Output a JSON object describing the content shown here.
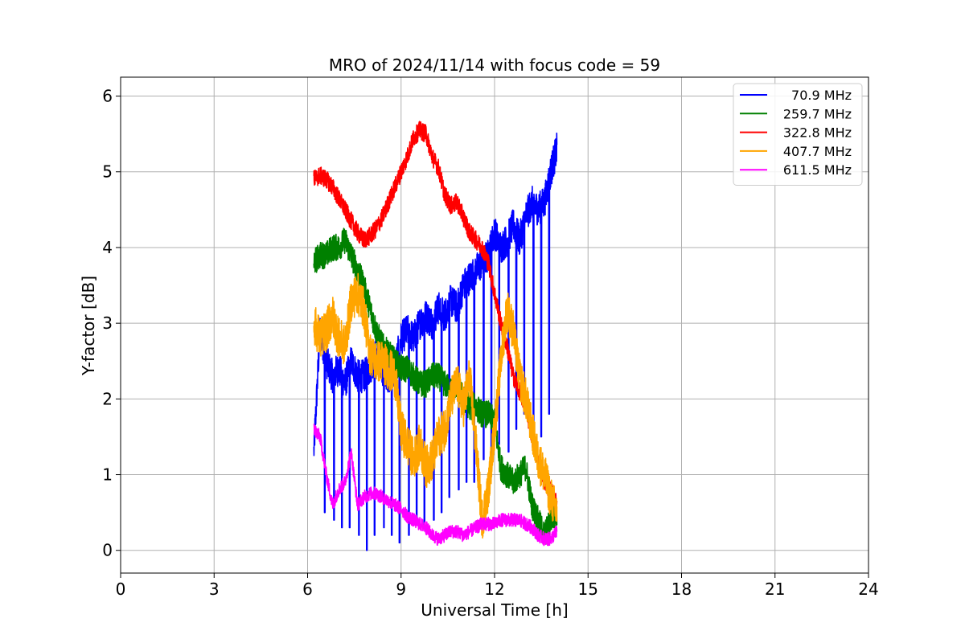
{
  "chart_data": {
    "type": "line",
    "title": "MRO of 2024/11/14 with focus code = 59",
    "xlabel": "Universal Time [h]",
    "ylabel": "Y-factor [dB]",
    "xlim": [
      0,
      24
    ],
    "ylim": [
      -0.3,
      6.25
    ],
    "xticks": [
      0,
      3,
      6,
      9,
      12,
      15,
      18,
      21,
      24
    ],
    "yticks": [
      0,
      1,
      2,
      3,
      4,
      5,
      6
    ],
    "grid": true,
    "legend_position": "top-right",
    "series": [
      {
        "name": "70.9 MHz",
        "color": "#0000ff",
        "x": [
          6.2,
          6.4,
          6.6,
          6.8,
          7.0,
          7.2,
          7.4,
          7.6,
          7.8,
          8.0,
          8.2,
          8.4,
          8.6,
          8.8,
          9.0,
          9.2,
          9.4,
          9.6,
          9.8,
          10.0,
          10.2,
          10.4,
          10.6,
          10.8,
          11.0,
          11.2,
          11.4,
          11.6,
          11.8,
          12.0,
          12.2,
          12.4,
          12.6,
          12.8,
          13.0,
          13.2,
          13.4,
          13.6,
          13.8,
          14.0
        ],
        "y": [
          1.3,
          2.9,
          2.5,
          2.3,
          2.4,
          2.2,
          2.5,
          2.3,
          2.3,
          2.4,
          2.6,
          2.4,
          2.3,
          2.4,
          2.8,
          2.9,
          2.8,
          3.0,
          3.1,
          3.0,
          3.2,
          3.1,
          3.3,
          3.2,
          3.5,
          3.6,
          3.7,
          3.8,
          3.9,
          4.2,
          4.0,
          4.1,
          4.3,
          4.1,
          4.4,
          4.6,
          4.5,
          4.6,
          5.0,
          5.3
        ],
        "drops": [
          6.55,
          6.85,
          7.1,
          7.35,
          7.65,
          7.9,
          8.15,
          8.45,
          8.7,
          8.95,
          9.25,
          9.5,
          9.75,
          10.05,
          10.3,
          10.55,
          10.85,
          11.1,
          11.35,
          11.65,
          11.9,
          12.15,
          12.45,
          12.7,
          12.95,
          13.25,
          13.5,
          13.75
        ],
        "drop_levels": [
          0.5,
          0.4,
          0.3,
          0.3,
          0.2,
          0.0,
          0.2,
          0.3,
          0.2,
          0.1,
          0.2,
          0.4,
          0.3,
          0.4,
          0.5,
          0.7,
          0.8,
          0.9,
          0.9,
          1.2,
          1.1,
          1.4,
          1.3,
          1.6,
          1.8,
          1.3,
          1.5,
          1.8
        ]
      },
      {
        "name": "259.7 MHz",
        "color": "#008000",
        "x": [
          6.2,
          6.4,
          6.6,
          6.8,
          7.0,
          7.2,
          7.4,
          7.6,
          7.8,
          8.0,
          8.2,
          8.4,
          8.6,
          8.8,
          9.0,
          9.2,
          9.4,
          9.6,
          9.8,
          10.0,
          10.2,
          10.4,
          10.6,
          10.8,
          11.0,
          11.2,
          11.4,
          11.6,
          11.8,
          12.0,
          12.2,
          12.4,
          12.6,
          12.8,
          13.0,
          13.2,
          13.4,
          13.6,
          13.8,
          14.0
        ],
        "y": [
          3.8,
          3.9,
          3.9,
          4.0,
          4.0,
          4.1,
          3.9,
          3.7,
          3.5,
          3.2,
          2.9,
          2.7,
          2.6,
          2.5,
          2.4,
          2.4,
          2.3,
          2.2,
          2.2,
          2.3,
          2.3,
          2.2,
          2.1,
          2.2,
          2.0,
          1.9,
          1.9,
          1.8,
          1.8,
          1.7,
          1.1,
          1.0,
          0.9,
          1.0,
          1.1,
          0.6,
          0.4,
          0.2,
          0.4,
          0.5
        ]
      },
      {
        "name": "322.8 MHz",
        "color": "#ff0000",
        "x": [
          6.2,
          6.4,
          6.6,
          6.8,
          7.0,
          7.2,
          7.4,
          7.6,
          7.8,
          8.0,
          8.2,
          8.4,
          8.6,
          8.8,
          9.0,
          9.2,
          9.4,
          9.6,
          9.8,
          10.0,
          10.2,
          10.4,
          10.6,
          10.8,
          11.0,
          11.2,
          11.4,
          11.6,
          11.8,
          12.0,
          12.2,
          12.4,
          12.6,
          12.8,
          13.0,
          13.2,
          13.4,
          13.6,
          13.8,
          14.0
        ],
        "y": [
          4.9,
          4.95,
          4.9,
          4.8,
          4.65,
          4.5,
          4.35,
          4.2,
          4.1,
          4.15,
          4.25,
          4.4,
          4.6,
          4.8,
          5.0,
          5.2,
          5.45,
          5.55,
          5.5,
          5.2,
          5.05,
          4.7,
          4.55,
          4.6,
          4.4,
          4.2,
          4.1,
          4.0,
          3.8,
          3.4,
          3.0,
          2.7,
          2.3,
          2.1,
          1.9,
          1.5,
          1.2,
          0.9,
          0.8,
          0.6
        ]
      },
      {
        "name": "407.7 MHz",
        "color": "#ffa500",
        "x": [
          6.2,
          6.4,
          6.6,
          6.8,
          7.0,
          7.2,
          7.4,
          7.6,
          7.8,
          8.0,
          8.2,
          8.4,
          8.6,
          8.8,
          9.0,
          9.2,
          9.4,
          9.6,
          9.8,
          10.0,
          10.2,
          10.4,
          10.6,
          10.8,
          11.0,
          11.2,
          11.4,
          11.6,
          11.8,
          12.0,
          12.2,
          12.4,
          12.6,
          12.8,
          13.0,
          13.2,
          13.4,
          13.6,
          13.8,
          14.0
        ],
        "y": [
          3.0,
          2.8,
          2.9,
          3.1,
          2.8,
          2.7,
          3.3,
          3.4,
          3.2,
          2.6,
          2.5,
          2.5,
          2.4,
          2.3,
          1.6,
          1.4,
          1.2,
          1.4,
          1.1,
          1.2,
          1.5,
          1.6,
          2.0,
          2.2,
          1.9,
          2.3,
          1.4,
          0.4,
          0.8,
          1.6,
          2.5,
          3.2,
          2.9,
          2.3,
          2.0,
          1.6,
          1.2,
          1.0,
          0.7,
          0.5
        ]
      },
      {
        "name": "611.5 MHz",
        "color": "#ff00ff",
        "x": [
          6.2,
          6.4,
          6.6,
          6.8,
          7.0,
          7.2,
          7.4,
          7.6,
          7.8,
          8.0,
          8.2,
          8.4,
          8.6,
          8.8,
          9.0,
          9.2,
          9.4,
          9.6,
          9.8,
          10.0,
          10.2,
          10.4,
          10.6,
          10.8,
          11.0,
          11.2,
          11.4,
          11.6,
          11.8,
          12.0,
          12.2,
          12.4,
          12.6,
          12.8,
          13.0,
          13.2,
          13.4,
          13.6,
          13.8,
          14.0
        ],
        "y": [
          1.6,
          1.5,
          1.0,
          0.6,
          0.8,
          0.9,
          1.3,
          0.6,
          0.7,
          0.75,
          0.75,
          0.7,
          0.65,
          0.6,
          0.55,
          0.45,
          0.4,
          0.35,
          0.3,
          0.2,
          0.15,
          0.2,
          0.25,
          0.25,
          0.2,
          0.25,
          0.3,
          0.35,
          0.35,
          0.35,
          0.4,
          0.4,
          0.4,
          0.4,
          0.35,
          0.3,
          0.2,
          0.15,
          0.15,
          0.25
        ]
      }
    ]
  }
}
